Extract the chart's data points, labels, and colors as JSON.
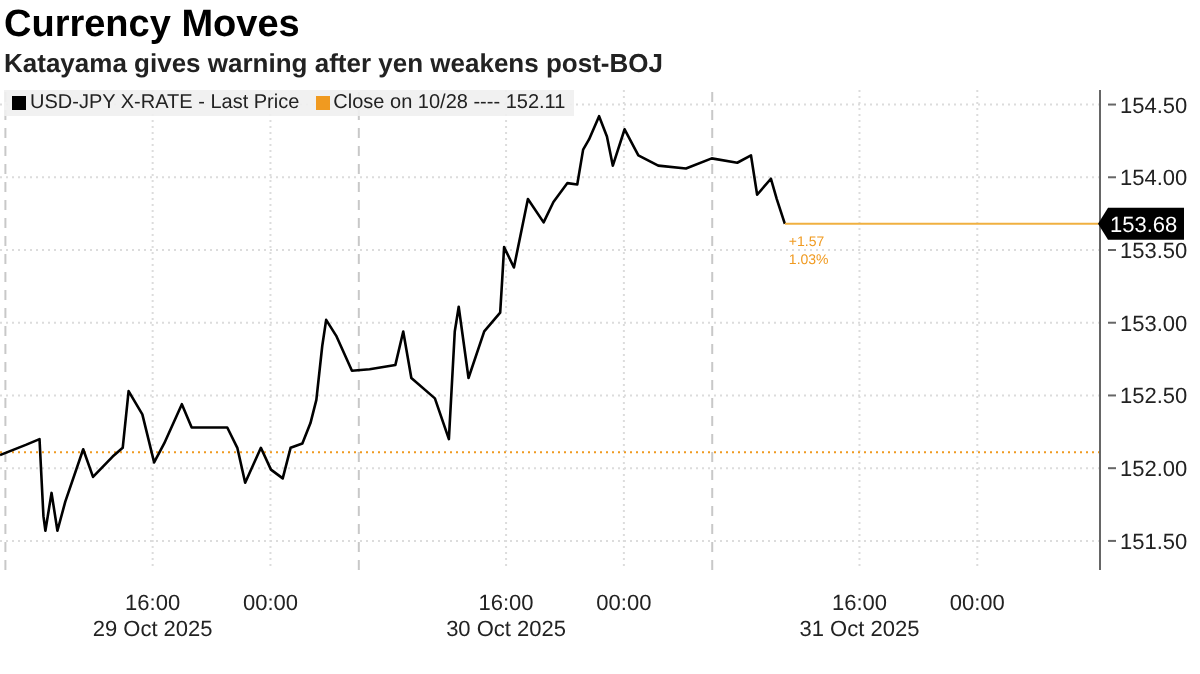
{
  "chart_data": {
    "type": "line",
    "title": "Currency Moves",
    "subtitle": "Katayama gives warning after yen weakens post-BOJ",
    "xlim": [
      "2025-10-29T05:38",
      "2025-11-01T08:20"
    ],
    "xticks": [
      {
        "value": "2025-10-29T16:00",
        "label": "16:00\n29 Oct 2025"
      },
      {
        "value": "2025-10-30T00:00",
        "label": "00:00"
      },
      {
        "value": "2025-10-30T16:00",
        "label": "16:00\n30 Oct 2025"
      },
      {
        "value": "2025-10-31T00:00",
        "label": "00:00"
      },
      {
        "value": "2025-10-31T16:00",
        "label": "16:00\n31 Oct 2025"
      },
      {
        "value": "2025-11-01T00:00",
        "label": "00:00"
      }
    ],
    "ylim": [
      151.3,
      154.6
    ],
    "yticks": [
      {
        "value": 151.5,
        "label": "151.50"
      },
      {
        "value": 152,
        "label": "152.00"
      },
      {
        "value": 152.5,
        "label": "152.50"
      },
      {
        "value": 153,
        "label": "153.00"
      },
      {
        "value": 153.5,
        "label": "153.50"
      },
      {
        "value": 154,
        "label": "154.00"
      },
      {
        "value": 154.5,
        "label": "154.50"
      }
    ],
    "grid": true,
    "legend": "top left",
    "marker": "none",
    "line_style": "solid",
    "series": [
      {
        "name": "USD-JPY X-RATE - Last Price",
        "color": "#000000",
        "x": [
          "2025-10-29T05:38",
          "2025-10-29T07:23",
          "2025-10-29T08:19",
          "2025-10-29T08:35",
          "2025-10-29T08:43",
          "2025-10-29T09:08",
          "2025-10-29T09:32",
          "2025-10-29T10:04",
          "2025-10-29T11:17",
          "2025-10-29T11:57",
          "2025-10-29T13:17",
          "2025-10-29T13:58",
          "2025-10-29T14:22",
          "2025-10-29T15:18",
          "2025-10-29T16:06",
          "2025-10-29T16:47",
          "2025-10-29T17:59",
          "2025-10-29T18:39",
          "2025-10-29T20:00",
          "2025-10-29T21:04",
          "2025-10-29T21:45",
          "2025-10-29T22:17",
          "2025-10-29T23:21",
          "2025-10-30T00:02",
          "2025-10-30T00:50",
          "2025-10-30T01:22",
          "2025-10-30T02:10",
          "2025-10-30T02:43",
          "2025-10-30T03:07",
          "2025-10-30T03:31",
          "2025-10-30T03:47",
          "2025-10-30T04:28",
          "2025-10-30T05:32",
          "2025-10-30T06:44",
          "2025-10-30T08:29",
          "2025-10-30T09:01",
          "2025-10-30T09:34",
          "2025-10-30T11:10",
          "2025-10-30T12:07",
          "2025-10-30T12:31",
          "2025-10-30T12:47",
          "2025-10-30T13:27",
          "2025-10-30T14:31",
          "2025-10-30T15:36",
          "2025-10-30T15:44",
          "2025-10-30T15:52",
          "2025-10-30T16:32",
          "2025-10-30T17:29",
          "2025-10-30T18:33",
          "2025-10-30T19:13",
          "2025-10-30T20:10",
          "2025-10-30T20:50",
          "2025-10-30T21:14",
          "2025-10-30T21:38",
          "2025-10-30T22:19",
          "2025-10-30T22:51",
          "2025-10-30T23:15",
          "2025-10-31T00:03",
          "2025-10-31T00:59",
          "2025-10-31T02:20",
          "2025-10-31T04:13",
          "2025-10-31T05:58",
          "2025-10-31T07:42",
          "2025-10-31T08:38",
          "2025-10-31T09:03",
          "2025-10-31T09:59",
          "2025-10-31T10:23",
          "2025-10-31T10:56"
        ],
        "values": [
          152.09,
          152.16,
          152.2,
          151.67,
          151.57,
          151.83,
          151.57,
          151.77,
          152.13,
          151.94,
          152.08,
          152.14,
          152.53,
          152.37,
          152.04,
          152.17,
          152.44,
          152.28,
          152.28,
          152.28,
          152.14,
          151.9,
          152.14,
          151.99,
          151.93,
          152.14,
          152.17,
          152.31,
          152.47,
          152.84,
          153.02,
          152.91,
          152.67,
          152.68,
          152.71,
          152.94,
          152.62,
          152.48,
          152.2,
          152.94,
          153.11,
          152.62,
          152.94,
          153.07,
          153.29,
          153.52,
          153.38,
          153.85,
          153.69,
          153.83,
          153.96,
          153.95,
          154.19,
          154.26,
          154.42,
          154.28,
          154.08,
          154.33,
          154.15,
          154.08,
          154.06,
          154.13,
          154.1,
          154.15,
          153.88,
          153.99,
          153.85,
          153.68
        ]
      },
      {
        "color": "#f0b040",
        "x": [
          "2025-10-31T10:56",
          "2025-11-01T08:20"
        ],
        "values": [
          153.68,
          153.68
        ]
      }
    ],
    "ref_lines": [
      {
        "axis": "y",
        "value": 152.11,
        "label": "Close on 10/28 ---- 152.11",
        "color": "#f09a20",
        "line_style": "dotted"
      },
      {
        "axis": "x",
        "value": "2025-10-29T06:00",
        "color": "#c8c8c8",
        "line_style": "dashed"
      },
      {
        "axis": "x",
        "value": "2025-10-30T06:00",
        "color": "#c8c8c8",
        "line_style": "dashed"
      },
      {
        "axis": "x",
        "value": "2025-10-31T06:00",
        "color": "#c8c8c8",
        "line_style": "dashed"
      }
    ],
    "annotations": [
      "153.68",
      {
        "text": "+1.57",
        "x": "2025-10-31T10:56",
        "y": 153.68
      },
      {
        "text": "1.03%",
        "x": "2025-10-31T10:56",
        "y": 153.68
      }
    ]
  }
}
